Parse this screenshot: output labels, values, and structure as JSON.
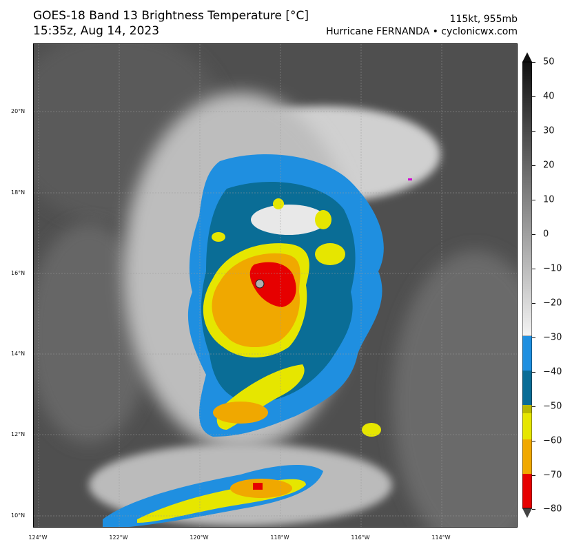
{
  "header": {
    "title_line1": "GOES-18 Band 13 Brightness Temperature [°C]",
    "title_line2": "15:35z, Aug 14, 2023",
    "intensity": "115kt, 955mb",
    "storm_credit": "Hurricane FERNANDA • cyclonicwx.com"
  },
  "map": {
    "lat_labels": [
      "20°N",
      "18°N",
      "16°N",
      "14°N",
      "12°N",
      "10°N"
    ],
    "lon_labels": [
      "124°W",
      "122°W",
      "120°W",
      "118°W",
      "116°W",
      "114°W"
    ],
    "background_color": "#4e4e4e"
  },
  "colorbar": {
    "ticks": [
      "50",
      "40",
      "30",
      "20",
      "10",
      "0",
      "−10",
      "−20",
      "−30",
      "−40",
      "−50",
      "−60",
      "−70",
      "−80"
    ],
    "range": [
      -80,
      50
    ],
    "extend": "both",
    "colors": {
      "warm": "#1a1a1a",
      "cold_white": "#f4f4f4",
      "blue_light": "#1f8fe0",
      "blue_dark": "#0a6d96",
      "yellow": "#e6e600",
      "orange": "#f0a800",
      "red": "#e60000",
      "magenta": "#d000d0"
    }
  }
}
